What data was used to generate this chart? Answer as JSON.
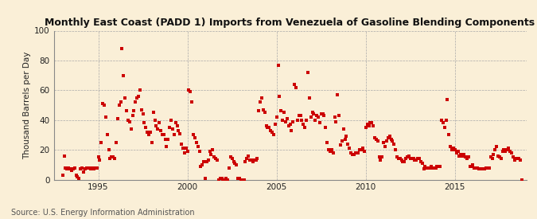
{
  "title": "Monthly East Coast (PADD 1) Imports from Venezuela of Gasoline Blending Components",
  "ylabel": "Thousand Barrels per Day",
  "source": "Source: U.S. Energy Information Administration",
  "background_color": "#faefd7",
  "plot_bg_color": "#faefd7",
  "marker_color": "#cc0000",
  "grid_color": "#aaaaaa",
  "ylim": [
    0,
    100
  ],
  "yticks": [
    0,
    20,
    40,
    60,
    80,
    100
  ],
  "xlim": [
    1992.5,
    2019.0
  ],
  "xtick_years": [
    1995,
    2000,
    2005,
    2010,
    2015
  ],
  "data": [
    [
      1993.0,
      3
    ],
    [
      1993.083,
      16
    ],
    [
      1993.167,
      8
    ],
    [
      1993.25,
      7
    ],
    [
      1993.333,
      8
    ],
    [
      1993.417,
      7
    ],
    [
      1993.5,
      6
    ],
    [
      1993.583,
      7
    ],
    [
      1993.667,
      8
    ],
    [
      1993.75,
      3
    ],
    [
      1993.833,
      2
    ],
    [
      1993.917,
      1
    ],
    [
      1994.0,
      7
    ],
    [
      1994.083,
      8
    ],
    [
      1994.167,
      5
    ],
    [
      1994.25,
      7
    ],
    [
      1994.333,
      8
    ],
    [
      1994.417,
      8
    ],
    [
      1994.5,
      8
    ],
    [
      1994.583,
      7
    ],
    [
      1994.667,
      8
    ],
    [
      1994.75,
      7
    ],
    [
      1994.833,
      8
    ],
    [
      1994.917,
      8
    ],
    [
      1995.0,
      15
    ],
    [
      1995.083,
      13
    ],
    [
      1995.167,
      25
    ],
    [
      1995.25,
      51
    ],
    [
      1995.333,
      50
    ],
    [
      1995.417,
      42
    ],
    [
      1995.5,
      30
    ],
    [
      1995.583,
      20
    ],
    [
      1995.667,
      14
    ],
    [
      1995.75,
      15
    ],
    [
      1995.833,
      15
    ],
    [
      1995.917,
      14
    ],
    [
      1996.0,
      25
    ],
    [
      1996.083,
      41
    ],
    [
      1996.167,
      50
    ],
    [
      1996.25,
      52
    ],
    [
      1996.333,
      88
    ],
    [
      1996.417,
      70
    ],
    [
      1996.5,
      55
    ],
    [
      1996.583,
      46
    ],
    [
      1996.667,
      40
    ],
    [
      1996.75,
      39
    ],
    [
      1996.833,
      34
    ],
    [
      1996.917,
      43
    ],
    [
      1997.0,
      46
    ],
    [
      1997.083,
      52
    ],
    [
      1997.167,
      55
    ],
    [
      1997.25,
      56
    ],
    [
      1997.333,
      60
    ],
    [
      1997.417,
      47
    ],
    [
      1997.5,
      44
    ],
    [
      1997.583,
      38
    ],
    [
      1997.667,
      35
    ],
    [
      1997.75,
      32
    ],
    [
      1997.833,
      30
    ],
    [
      1997.917,
      32
    ],
    [
      1998.0,
      25
    ],
    [
      1998.083,
      45
    ],
    [
      1998.167,
      40
    ],
    [
      1998.25,
      36
    ],
    [
      1998.333,
      34
    ],
    [
      1998.417,
      38
    ],
    [
      1998.5,
      33
    ],
    [
      1998.583,
      30
    ],
    [
      1998.667,
      30
    ],
    [
      1998.75,
      27
    ],
    [
      1998.833,
      22
    ],
    [
      1998.917,
      27
    ],
    [
      1999.0,
      35
    ],
    [
      1999.083,
      40
    ],
    [
      1999.167,
      34
    ],
    [
      1999.25,
      30
    ],
    [
      1999.333,
      38
    ],
    [
      1999.417,
      36
    ],
    [
      1999.5,
      33
    ],
    [
      1999.583,
      31
    ],
    [
      1999.667,
      24
    ],
    [
      1999.75,
      21
    ],
    [
      1999.833,
      18
    ],
    [
      1999.917,
      21
    ],
    [
      2000.0,
      19
    ],
    [
      2000.083,
      60
    ],
    [
      2000.167,
      59
    ],
    [
      2000.25,
      52
    ],
    [
      2000.333,
      30
    ],
    [
      2000.417,
      28
    ],
    [
      2000.5,
      25
    ],
    [
      2000.583,
      22
    ],
    [
      2000.667,
      19
    ],
    [
      2000.75,
      9
    ],
    [
      2000.833,
      10
    ],
    [
      2000.917,
      12
    ],
    [
      2001.0,
      1
    ],
    [
      2001.083,
      12
    ],
    [
      2001.167,
      13
    ],
    [
      2001.25,
      19
    ],
    [
      2001.333,
      17
    ],
    [
      2001.417,
      20
    ],
    [
      2001.5,
      15
    ],
    [
      2001.583,
      14
    ],
    [
      2001.667,
      13
    ],
    [
      2001.75,
      0
    ],
    [
      2001.833,
      1
    ],
    [
      2001.917,
      1
    ],
    [
      2002.0,
      0
    ],
    [
      2002.083,
      0
    ],
    [
      2002.167,
      1
    ],
    [
      2002.25,
      0
    ],
    [
      2002.333,
      8
    ],
    [
      2002.417,
      15
    ],
    [
      2002.5,
      14
    ],
    [
      2002.583,
      12
    ],
    [
      2002.667,
      11
    ],
    [
      2002.75,
      10
    ],
    [
      2002.833,
      1
    ],
    [
      2002.917,
      1
    ],
    [
      2003.0,
      0
    ],
    [
      2003.083,
      0
    ],
    [
      2003.167,
      0
    ],
    [
      2003.25,
      12
    ],
    [
      2003.333,
      14
    ],
    [
      2003.417,
      16
    ],
    [
      2003.5,
      13
    ],
    [
      2003.583,
      13
    ],
    [
      2003.667,
      12
    ],
    [
      2003.75,
      13
    ],
    [
      2003.833,
      13
    ],
    [
      2003.917,
      14
    ],
    [
      2004.0,
      46
    ],
    [
      2004.083,
      52
    ],
    [
      2004.167,
      55
    ],
    [
      2004.25,
      47
    ],
    [
      2004.333,
      45
    ],
    [
      2004.417,
      36
    ],
    [
      2004.5,
      35
    ],
    [
      2004.583,
      35
    ],
    [
      2004.667,
      33
    ],
    [
      2004.75,
      32
    ],
    [
      2004.833,
      30
    ],
    [
      2004.917,
      37
    ],
    [
      2005.0,
      42
    ],
    [
      2005.083,
      77
    ],
    [
      2005.167,
      56
    ],
    [
      2005.25,
      46
    ],
    [
      2005.333,
      40
    ],
    [
      2005.417,
      45
    ],
    [
      2005.5,
      39
    ],
    [
      2005.583,
      41
    ],
    [
      2005.667,
      36
    ],
    [
      2005.75,
      37
    ],
    [
      2005.833,
      33
    ],
    [
      2005.917,
      39
    ],
    [
      2006.0,
      64
    ],
    [
      2006.083,
      62
    ],
    [
      2006.167,
      40
    ],
    [
      2006.25,
      43
    ],
    [
      2006.333,
      43
    ],
    [
      2006.417,
      40
    ],
    [
      2006.5,
      37
    ],
    [
      2006.583,
      35
    ],
    [
      2006.667,
      40
    ],
    [
      2006.75,
      72
    ],
    [
      2006.833,
      55
    ],
    [
      2006.917,
      42
    ],
    [
      2007.0,
      45
    ],
    [
      2007.083,
      44
    ],
    [
      2007.167,
      40
    ],
    [
      2007.25,
      43
    ],
    [
      2007.333,
      42
    ],
    [
      2007.417,
      38
    ],
    [
      2007.5,
      44
    ],
    [
      2007.583,
      44
    ],
    [
      2007.667,
      43
    ],
    [
      2007.75,
      35
    ],
    [
      2007.833,
      25
    ],
    [
      2007.917,
      20
    ],
    [
      2008.0,
      19
    ],
    [
      2008.083,
      20
    ],
    [
      2008.167,
      18
    ],
    [
      2008.25,
      42
    ],
    [
      2008.333,
      39
    ],
    [
      2008.417,
      57
    ],
    [
      2008.5,
      43
    ],
    [
      2008.583,
      23
    ],
    [
      2008.667,
      26
    ],
    [
      2008.75,
      34
    ],
    [
      2008.833,
      27
    ],
    [
      2008.917,
      29
    ],
    [
      2009.0,
      24
    ],
    [
      2009.083,
      21
    ],
    [
      2009.167,
      18
    ],
    [
      2009.25,
      17
    ],
    [
      2009.333,
      17
    ],
    [
      2009.417,
      18
    ],
    [
      2009.5,
      18
    ],
    [
      2009.583,
      18
    ],
    [
      2009.667,
      20
    ],
    [
      2009.75,
      20
    ],
    [
      2009.833,
      21
    ],
    [
      2009.917,
      19
    ],
    [
      2010.0,
      35
    ],
    [
      2010.083,
      37
    ],
    [
      2010.167,
      36
    ],
    [
      2010.25,
      38
    ],
    [
      2010.333,
      38
    ],
    [
      2010.417,
      36
    ],
    [
      2010.5,
      28
    ],
    [
      2010.583,
      27
    ],
    [
      2010.667,
      26
    ],
    [
      2010.75,
      15
    ],
    [
      2010.833,
      13
    ],
    [
      2010.917,
      15
    ],
    [
      2011.0,
      25
    ],
    [
      2011.083,
      22
    ],
    [
      2011.167,
      26
    ],
    [
      2011.25,
      28
    ],
    [
      2011.333,
      29
    ],
    [
      2011.417,
      27
    ],
    [
      2011.5,
      26
    ],
    [
      2011.583,
      24
    ],
    [
      2011.667,
      20
    ],
    [
      2011.75,
      15
    ],
    [
      2011.833,
      14
    ],
    [
      2011.917,
      14
    ],
    [
      2012.0,
      13
    ],
    [
      2012.083,
      12
    ],
    [
      2012.167,
      12
    ],
    [
      2012.25,
      14
    ],
    [
      2012.333,
      15
    ],
    [
      2012.417,
      16
    ],
    [
      2012.5,
      14
    ],
    [
      2012.583,
      14
    ],
    [
      2012.667,
      14
    ],
    [
      2012.75,
      13
    ],
    [
      2012.833,
      13
    ],
    [
      2012.917,
      14
    ],
    [
      2013.0,
      14
    ],
    [
      2013.083,
      12
    ],
    [
      2013.167,
      11
    ],
    [
      2013.25,
      7
    ],
    [
      2013.333,
      9
    ],
    [
      2013.417,
      8
    ],
    [
      2013.5,
      8
    ],
    [
      2013.583,
      8
    ],
    [
      2013.667,
      9
    ],
    [
      2013.75,
      8
    ],
    [
      2013.833,
      8
    ],
    [
      2013.917,
      8
    ],
    [
      2014.0,
      9
    ],
    [
      2014.083,
      9
    ],
    [
      2014.167,
      9
    ],
    [
      2014.25,
      40
    ],
    [
      2014.333,
      38
    ],
    [
      2014.417,
      35
    ],
    [
      2014.5,
      40
    ],
    [
      2014.583,
      54
    ],
    [
      2014.667,
      30
    ],
    [
      2014.75,
      22
    ],
    [
      2014.833,
      20
    ],
    [
      2014.917,
      21
    ],
    [
      2015.0,
      20
    ],
    [
      2015.083,
      18
    ],
    [
      2015.167,
      19
    ],
    [
      2015.25,
      16
    ],
    [
      2015.333,
      17
    ],
    [
      2015.417,
      16
    ],
    [
      2015.5,
      17
    ],
    [
      2015.583,
      15
    ],
    [
      2015.667,
      14
    ],
    [
      2015.75,
      15
    ],
    [
      2015.833,
      9
    ],
    [
      2015.917,
      9
    ],
    [
      2016.0,
      10
    ],
    [
      2016.083,
      8
    ],
    [
      2016.167,
      8
    ],
    [
      2016.25,
      8
    ],
    [
      2016.333,
      7
    ],
    [
      2016.417,
      7
    ],
    [
      2016.5,
      7
    ],
    [
      2016.583,
      7
    ],
    [
      2016.667,
      7
    ],
    [
      2016.75,
      8
    ],
    [
      2016.833,
      8
    ],
    [
      2016.917,
      8
    ],
    [
      2017.0,
      15
    ],
    [
      2017.083,
      14
    ],
    [
      2017.167,
      17
    ],
    [
      2017.25,
      20
    ],
    [
      2017.333,
      22
    ],
    [
      2017.417,
      16
    ],
    [
      2017.5,
      15
    ],
    [
      2017.583,
      14
    ],
    [
      2017.667,
      19
    ],
    [
      2017.75,
      20
    ],
    [
      2017.833,
      19
    ],
    [
      2017.917,
      20
    ],
    [
      2018.0,
      21
    ],
    [
      2018.083,
      19
    ],
    [
      2018.167,
      18
    ],
    [
      2018.25,
      15
    ],
    [
      2018.333,
      13
    ],
    [
      2018.417,
      14
    ],
    [
      2018.5,
      14
    ],
    [
      2018.583,
      14
    ],
    [
      2018.667,
      13
    ],
    [
      2018.75,
      0
    ]
  ]
}
